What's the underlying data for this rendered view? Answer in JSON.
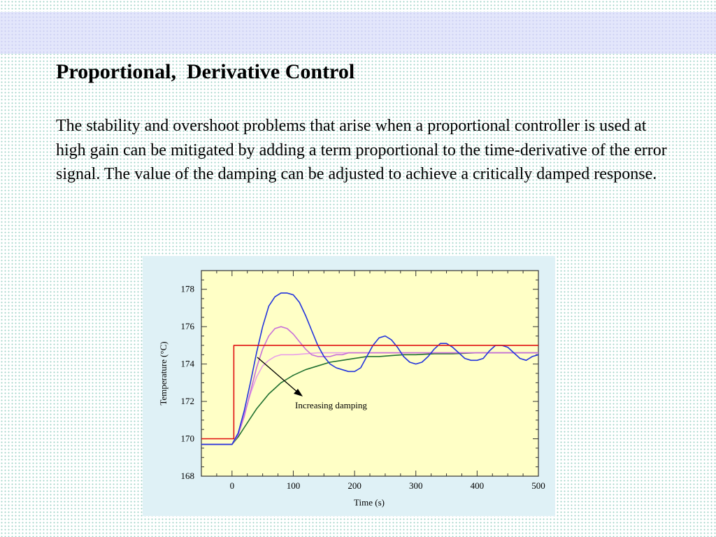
{
  "slide": {
    "title": "Proportional,  Derivative Control",
    "body": "The stability and overshoot problems that arise when a  proportional controller is used at high gain can be mitigated by adding a term proportional to the time-derivative of the error signal. The value of the damping can be adjusted to achieve a critically damped response.",
    "colors": {
      "band": "#e3e6fb",
      "figure_bg": "#dff1f6",
      "plot_bg": "#ffffc6"
    }
  },
  "chart_data": {
    "type": "line",
    "title": "",
    "xlabel": "Time (s)",
    "ylabel": "Temperature (°C)",
    "xlim": [
      -50,
      500
    ],
    "ylim": [
      168,
      179
    ],
    "xticks": [
      0,
      100,
      200,
      300,
      400,
      500
    ],
    "yticks": [
      168,
      170,
      172,
      174,
      176,
      178
    ],
    "grid": false,
    "annotation": "Increasing damping",
    "series": [
      {
        "color": "#e01010",
        "x": [
          -50,
          0,
          0,
          3,
          3,
          500
        ],
        "y": [
          170,
          170,
          170,
          170,
          175,
          175
        ]
      },
      {
        "color": "#2233dd",
        "x": [
          -50,
          0,
          10,
          20,
          30,
          40,
          50,
          60,
          70,
          80,
          90,
          100,
          110,
          120,
          130,
          140,
          150,
          160,
          170,
          180,
          190,
          200,
          210,
          220,
          230,
          240,
          250,
          260,
          270,
          280,
          290,
          300,
          310,
          320,
          330,
          340,
          350,
          360,
          370,
          380,
          390,
          400,
          410,
          420,
          430,
          440,
          450,
          460,
          470,
          480,
          490,
          500
        ],
        "y": [
          169.7,
          169.7,
          170.3,
          171.5,
          173.0,
          174.6,
          176.0,
          177.1,
          177.6,
          177.8,
          177.8,
          177.7,
          177.3,
          176.6,
          175.8,
          175.0,
          174.4,
          174.0,
          173.8,
          173.7,
          173.6,
          173.6,
          173.8,
          174.4,
          175.0,
          175.4,
          175.5,
          175.3,
          174.9,
          174.4,
          174.1,
          174.0,
          174.1,
          174.4,
          174.8,
          175.1,
          175.1,
          174.9,
          174.6,
          174.3,
          174.2,
          174.2,
          174.3,
          174.7,
          175.0,
          175.0,
          174.9,
          174.6,
          174.3,
          174.2,
          174.4,
          174.5
        ]
      },
      {
        "color": "#c870d8",
        "x": [
          -50,
          0,
          10,
          20,
          30,
          40,
          50,
          60,
          70,
          80,
          90,
          100,
          110,
          120,
          130,
          140,
          150,
          160,
          170,
          180,
          190,
          200,
          220,
          240,
          260,
          280,
          300,
          320,
          340,
          360,
          380,
          400,
          440,
          480,
          500
        ],
        "y": [
          169.7,
          169.7,
          170.2,
          171.2,
          172.5,
          173.8,
          174.8,
          175.5,
          175.9,
          176.0,
          175.9,
          175.6,
          175.2,
          174.8,
          174.5,
          174.4,
          174.4,
          174.4,
          174.5,
          174.5,
          174.6,
          174.6,
          174.6,
          174.6,
          174.6,
          174.6,
          174.6,
          174.6,
          174.6,
          174.6,
          174.6,
          174.6,
          174.6,
          174.6,
          174.6
        ]
      },
      {
        "color": "#e8a0e8",
        "x": [
          -50,
          0,
          10,
          20,
          30,
          40,
          50,
          60,
          70,
          80,
          90,
          100,
          120,
          140,
          160,
          200,
          250,
          300,
          350,
          400,
          450,
          500
        ],
        "y": [
          169.7,
          169.7,
          170.3,
          171.3,
          172.4,
          173.3,
          173.9,
          174.2,
          174.4,
          174.5,
          174.5,
          174.5,
          174.55,
          174.6,
          174.6,
          174.6,
          174.6,
          174.6,
          174.6,
          174.6,
          174.6,
          174.6
        ]
      },
      {
        "color": "#207030",
        "x": [
          -50,
          0,
          10,
          20,
          30,
          40,
          50,
          60,
          70,
          80,
          90,
          100,
          120,
          140,
          160,
          180,
          200,
          220,
          240,
          260,
          280,
          300,
          330,
          360,
          400,
          450,
          500
        ],
        "y": [
          169.7,
          169.7,
          170.1,
          170.6,
          171.1,
          171.6,
          172.0,
          172.4,
          172.7,
          173.0,
          173.2,
          173.4,
          173.7,
          173.9,
          174.1,
          174.2,
          174.3,
          174.4,
          174.4,
          174.45,
          174.5,
          174.5,
          174.55,
          174.55,
          174.6,
          174.6,
          174.6
        ]
      }
    ]
  }
}
